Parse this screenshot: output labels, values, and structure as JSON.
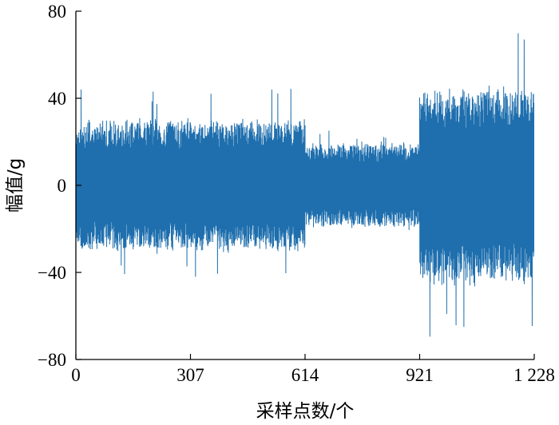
{
  "chart_data": {
    "type": "line",
    "title": "",
    "xlabel": "采样点数/个",
    "ylabel": "幅值/g",
    "xlim": [
      0,
      1228
    ],
    "ylim": [
      -80,
      80
    ],
    "x_ticks": [
      0,
      307,
      614,
      921,
      1228
    ],
    "x_tick_labels": [
      "0",
      "307",
      "614",
      "921",
      "1 228"
    ],
    "y_ticks": [
      -80,
      -40,
      0,
      40,
      80
    ],
    "y_tick_labels": [
      "−80",
      "−40",
      "0",
      "40",
      "80"
    ],
    "grid": false,
    "legend": "none",
    "series": [
      {
        "color": "#1f6fae",
        "style": "dense vibration signal (continuous band)",
        "segments": [
          {
            "x_range": [
              0,
              614
            ],
            "typical_amplitude": 28,
            "peak_max": 46,
            "peak_min": -45
          },
          {
            "x_range": [
              614,
              921
            ],
            "typical_amplitude": 18,
            "peak_max": 26,
            "peak_min": -22
          },
          {
            "x_range": [
              921,
              1228
            ],
            "typical_amplitude": 42,
            "peak_max": 73,
            "peak_min": -72
          }
        ]
      }
    ]
  }
}
